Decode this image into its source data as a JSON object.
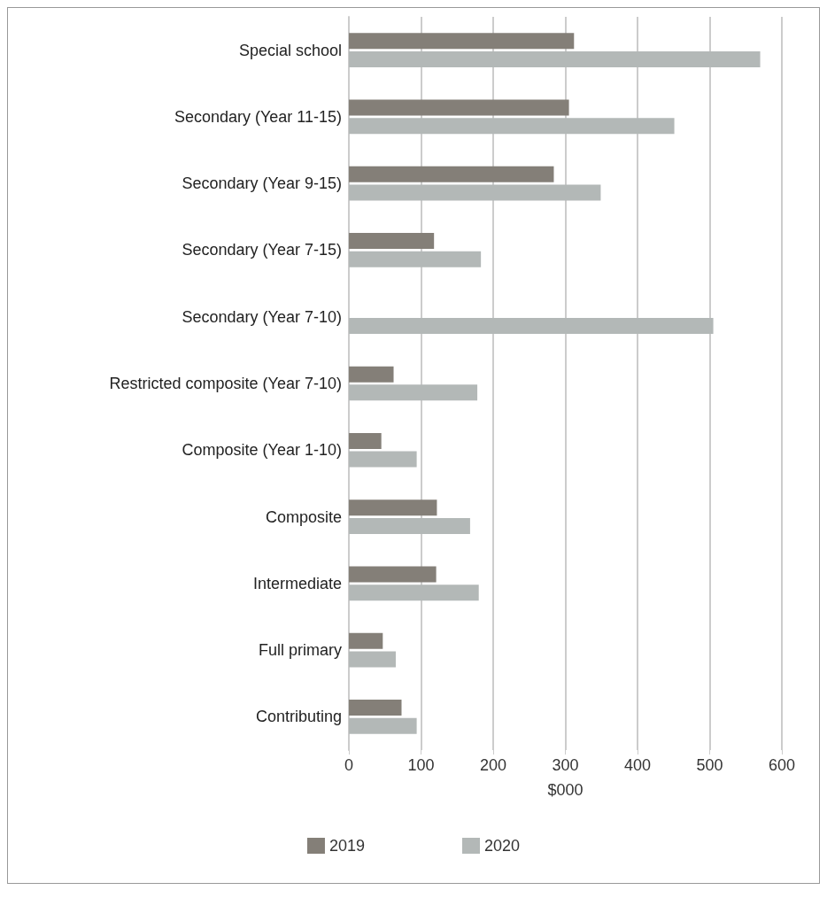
{
  "chart_data": {
    "type": "bar",
    "orientation": "horizontal",
    "xlabel": "$000",
    "categories": [
      "Special school",
      "Secondary (Year 11-15)",
      "Secondary (Year 9-15)",
      "Secondary (Year 7-15)",
      "Secondary (Year 7-10)",
      "Restricted composite (Year 7-10)",
      "Composite (Year 1-10)",
      "Composite",
      "Intermediate",
      "Full primary",
      "Contributing"
    ],
    "series": [
      {
        "name": "2019",
        "color": "#847f78",
        "values": [
          312,
          305,
          284,
          118,
          null,
          62,
          45,
          122,
          121,
          47,
          73
        ]
      },
      {
        "name": "2020",
        "color": "#b3b8b7",
        "values": [
          570,
          451,
          349,
          183,
          505,
          178,
          94,
          168,
          180,
          65,
          94
        ]
      }
    ],
    "xlim": [
      0,
      600
    ],
    "xticks": [
      0,
      100,
      200,
      300,
      400,
      500,
      600
    ],
    "grid": "x",
    "legend": "bottom"
  }
}
